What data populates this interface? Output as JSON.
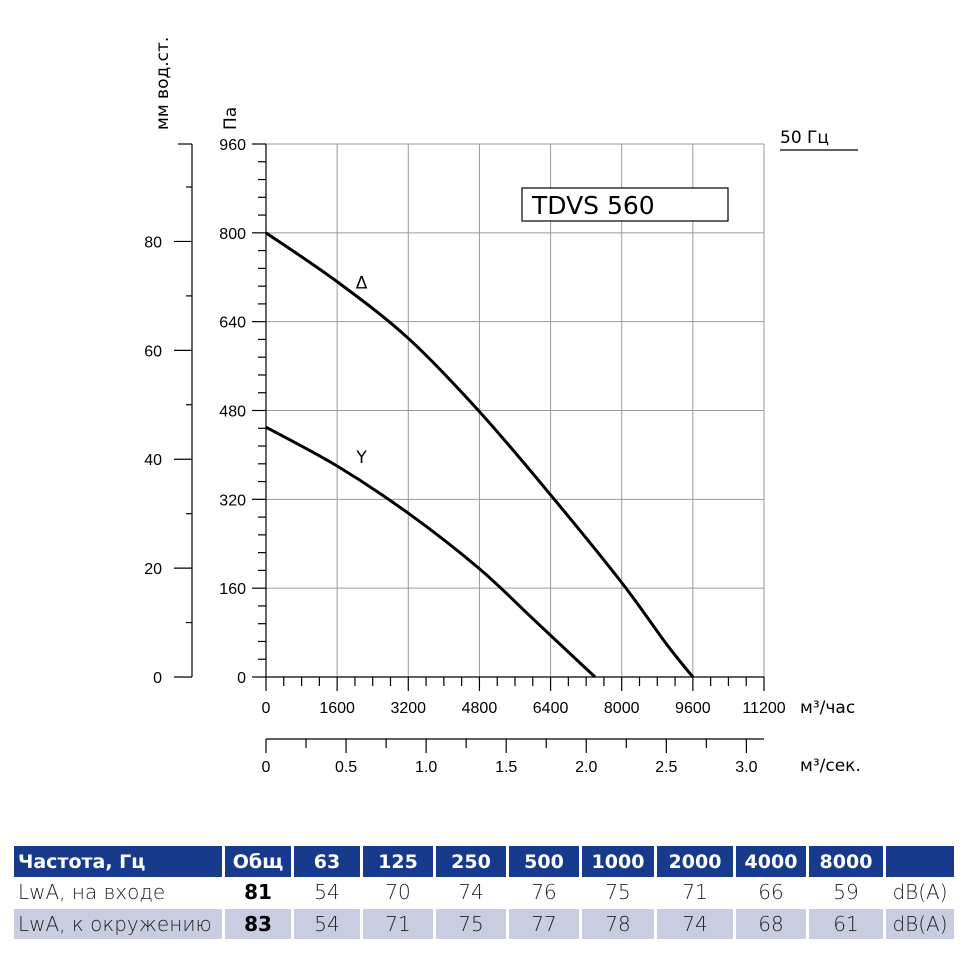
{
  "chart_data": {
    "type": "line",
    "model": "TDVS 560",
    "frequency_label": "50 Гц",
    "x_axis": {
      "label": "м³/час",
      "range": [
        0,
        11200
      ],
      "ticks": [
        0,
        1600,
        3200,
        4800,
        6400,
        8000,
        9600,
        11200
      ],
      "tick_labels": [
        "0",
        "1600",
        "3200",
        "4800",
        "6400",
        "8000",
        "9600",
        "11200"
      ]
    },
    "x2_axis": {
      "label": "м³/сек.",
      "range": [
        0,
        3.11
      ],
      "ticks": [
        0,
        0.5,
        1.0,
        1.5,
        2.0,
        2.5,
        3.0
      ],
      "tick_labels": [
        "0",
        "0.5",
        "1.0",
        "1.5",
        "2.0",
        "2.5",
        "3.0"
      ]
    },
    "y_axis": {
      "label": "Па",
      "range": [
        0,
        960
      ],
      "ticks": [
        0,
        160,
        320,
        480,
        640,
        800,
        960
      ],
      "tick_labels": [
        "0",
        "160",
        "320",
        "480",
        "640",
        "800",
        "960"
      ]
    },
    "y2_axis": {
      "label": "мм вод.ст.",
      "range": [
        0,
        97.9
      ],
      "ticks": [
        0,
        20,
        40,
        60,
        80
      ],
      "tick_labels": [
        "0",
        "20",
        "40",
        "60",
        "80"
      ]
    },
    "grid": true,
    "series": [
      {
        "name": "Δ",
        "x": [
          0,
          1600,
          3200,
          4800,
          6400,
          8000,
          9000,
          9600
        ],
        "y": [
          800,
          712,
          610,
          478,
          328,
          170,
          60,
          0
        ]
      },
      {
        "name": "Y",
        "x": [
          0,
          1600,
          3200,
          4800,
          6000,
          7000,
          7400
        ],
        "y": [
          450,
          380,
          295,
          195,
          105,
          30,
          0
        ]
      }
    ]
  },
  "sound_table": {
    "headers": [
      "Частота, Гц",
      "Общ",
      "63",
      "125",
      "250",
      "500",
      "1000",
      "2000",
      "4000",
      "8000",
      ""
    ],
    "rows": [
      {
        "label": "LwA, на входе",
        "total": "81",
        "values": [
          "54",
          "70",
          "74",
          "76",
          "75",
          "71",
          "66",
          "59"
        ],
        "unit": "dB(A)"
      },
      {
        "label": "LwA, к окружению",
        "total": "83",
        "values": [
          "54",
          "71",
          "75",
          "77",
          "78",
          "74",
          "68",
          "61"
        ],
        "unit": "dB(A)"
      }
    ]
  }
}
